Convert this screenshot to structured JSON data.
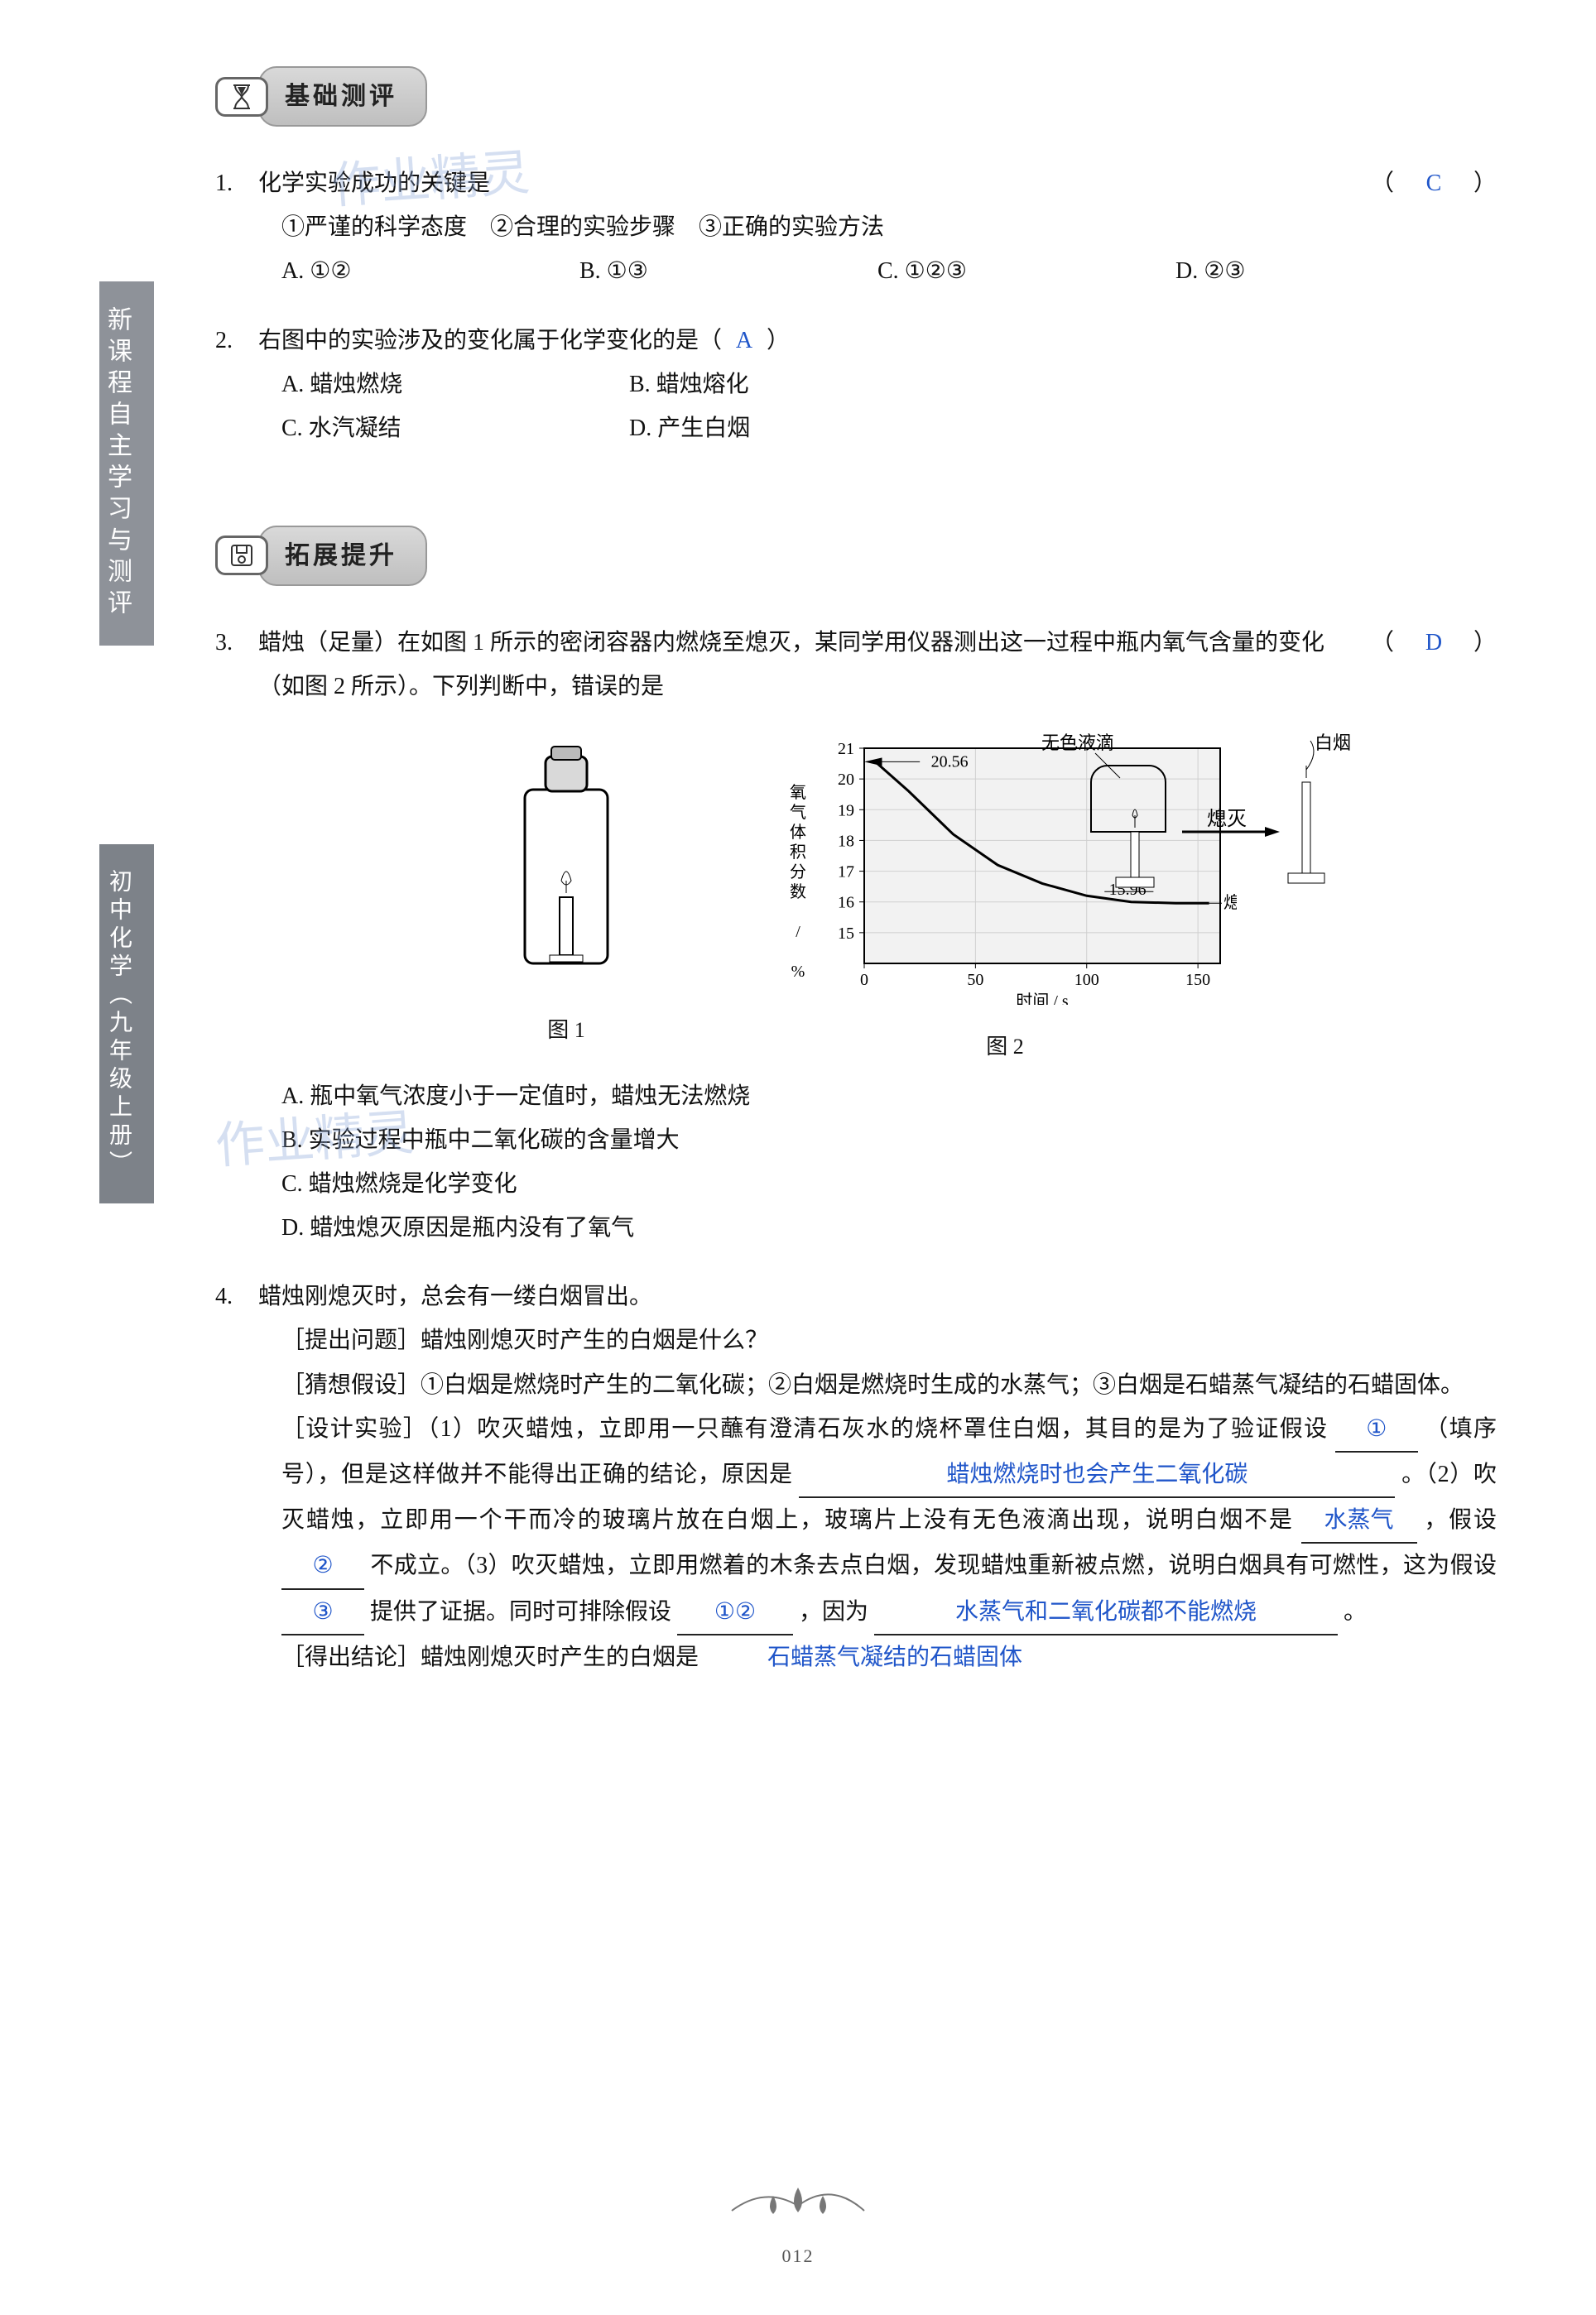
{
  "sidebar": {
    "tab1": "新课程自主学习与测评",
    "tab2": "初中化学（九年级上册）"
  },
  "watermark_text": "作业精灵",
  "sections": {
    "basic": {
      "label": "基础测评"
    },
    "extend": {
      "label": "拓展提升"
    }
  },
  "q1": {
    "num": "1.",
    "stem": "化学实验成功的关键是",
    "answer": "C",
    "line2": "①严谨的科学态度　②合理的实验步骤　③正确的实验方法",
    "choices": {
      "A": "A.  ①②",
      "B": "B.  ①③",
      "C": "C.  ①②③",
      "D": "D.  ②③"
    }
  },
  "q2": {
    "num": "2.",
    "stem": "右图中的实验涉及的变化属于化学变化的是（",
    "answer": "A",
    "stem_end": "）",
    "choices": {
      "A": "A.  蜡烛燃烧",
      "B": "B.  蜡烛熔化",
      "C": "C.  水汽凝结",
      "D": "D.  产生白烟"
    },
    "diagram": {
      "label_liquid": "无色液滴",
      "label_smoke": "白烟",
      "label_ext": "熄灭"
    }
  },
  "q3": {
    "num": "3.",
    "stem": "蜡烛（足量）在如图 1 所示的密闭容器内燃烧至熄灭，某同学用仪器测出这一过程中瓶内氧气含量的变化（如图 2 所示）。下列判断中，错误的是",
    "answer": "D",
    "fig1_caption": "图 1",
    "fig2_caption": "图 2",
    "choices": {
      "A": "A.  瓶中氧气浓度小于一定值时，蜡烛无法燃烧",
      "B": "B.  实验过程中瓶中二氧化碳的含量增大",
      "C": "C.  蜡烛燃烧是化学变化",
      "D": "D.  蜡烛熄灭原因是瓶内没有了氧气"
    },
    "chart": {
      "type": "line",
      "xlabel": "时间 / s",
      "ylabel": "氧气体积分数 / %",
      "xlim": [
        0,
        160
      ],
      "xticks": [
        0,
        50,
        100,
        150
      ],
      "ylim": [
        14,
        21
      ],
      "yticks": [
        15,
        16,
        17,
        18,
        19,
        20,
        21
      ],
      "points": [
        [
          5,
          20.56
        ],
        [
          20,
          19.6
        ],
        [
          40,
          18.2
        ],
        [
          60,
          17.2
        ],
        [
          80,
          16.6
        ],
        [
          100,
          16.2
        ],
        [
          120,
          16.0
        ],
        [
          140,
          15.96
        ],
        [
          155,
          15.96
        ]
      ],
      "start_value": "20.56",
      "end_value": "15.96",
      "end_label": "熄灭",
      "line_color": "#000000",
      "grid_color": "#cfcfcf",
      "bg": "#f2f2f2",
      "label_fontsize": 20
    }
  },
  "q4": {
    "num": "4.",
    "line1": "蜡烛刚熄灭时，总会有一缕白烟冒出。",
    "tiwen": "［提出问题］蜡烛刚熄灭时产生的白烟是什么？",
    "caixiang": "［猜想假设］①白烟是燃烧时产生的二氧化碳；②白烟是燃烧时生成的水蒸气；③白烟是石蜡蒸气凝结的石蜡固体。",
    "shiyan_lead": "［设计实验］（1）吹灭蜡烛，立即用一只蘸有澄清石灰水的烧杯罩住白烟，其目的是为了验证假设",
    "blank1": "①",
    "shiyan_mid1": "（填序号），但是这样做并不能得出正确的结论，原因是",
    "blank2": "蜡烛燃烧时也会产生二氧化碳",
    "shiyan_mid2": "。（2）吹灭蜡烛，立即用一个干而冷的玻璃片放在白烟上，玻璃片上没有无色液滴出现，说明白烟不是",
    "blank3": "水蒸气",
    "shiyan_mid3": "，假设",
    "blank4": "②",
    "shiyan_mid4": "不成立。（3）吹灭蜡烛，立即用燃着的木条去点白烟，发现蜡烛重新被点燃，说明白烟具有可燃性，这为假设",
    "blank5": "③",
    "shiyan_mid5": "提供了证据。同时可排除假设",
    "blank6": "①②",
    "shiyan_mid6": "，因为",
    "blank7": "水蒸气和二氧化碳都不能燃烧",
    "shiyan_end": "。",
    "jielun_lead": "［得出结论］蜡烛刚熄灭时产生的白烟是",
    "blank8": "石蜡蒸气凝结的石蜡固体"
  },
  "page_number": "012"
}
